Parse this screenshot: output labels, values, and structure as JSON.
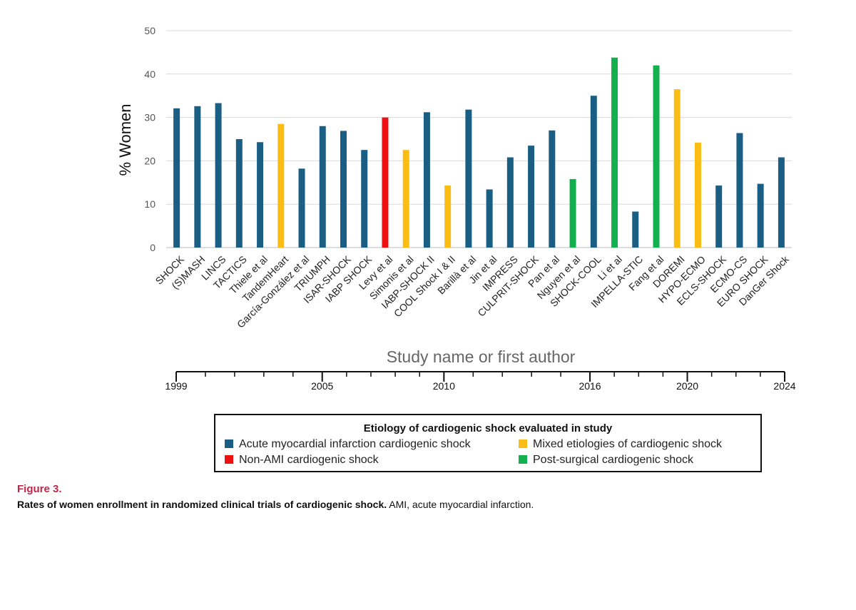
{
  "chart_data": {
    "type": "bar",
    "title": "",
    "ylabel": "% Women",
    "xlabel": "Study name or first author",
    "ylim": [
      0,
      50
    ],
    "yticks": [
      0,
      10,
      20,
      30,
      40,
      50
    ],
    "grid": true,
    "categories": [
      "SHOCK",
      "(S)MASH",
      "LINCS",
      "TACTICS",
      "Thiele et al",
      "TandemHeart",
      "García-González et al",
      "TRIUMPH",
      "ISAR-SHOCK",
      "IABP SHOCK",
      "Levy et al",
      "Simonis et al",
      "IABP-SHOCK II",
      "COOL Shock I & II",
      "Barillà et al",
      "Jin et al",
      "IMPRESS",
      "CULPRIT-SHOCK",
      "Pan et al",
      "Nguyen et al",
      "SHOCK-COOL",
      "Li et al",
      "IMPELLA-STIC",
      "Fang et al",
      "DOREMI",
      "HYPO-ECMO",
      "ECLS-SHOCK",
      "ECMO-CS",
      "EURO SHOCK",
      "DanGer Shock"
    ],
    "values": [
      32.1,
      32.6,
      33.3,
      25.0,
      24.3,
      28.5,
      18.2,
      28.0,
      26.9,
      22.5,
      30.0,
      22.5,
      31.2,
      14.3,
      31.8,
      13.4,
      20.8,
      23.5,
      27.0,
      15.8,
      35.0,
      43.8,
      8.3,
      42.0,
      36.5,
      24.2,
      14.3,
      26.4,
      14.7,
      20.8
    ],
    "group": [
      "AMI",
      "AMI",
      "AMI",
      "AMI",
      "AMI",
      "Mixed",
      "AMI",
      "AMI",
      "AMI",
      "AMI",
      "NonAMI",
      "Mixed",
      "AMI",
      "Mixed",
      "AMI",
      "AMI",
      "AMI",
      "AMI",
      "AMI",
      "Post",
      "AMI",
      "Post",
      "AMI",
      "Post",
      "Mixed",
      "Mixed",
      "AMI",
      "AMI",
      "AMI",
      "AMI"
    ],
    "colors": {
      "AMI": "#1a5e84",
      "Mixed": "#fbbd14",
      "NonAMI": "#ee1111",
      "Post": "#12b04e"
    },
    "timeline": {
      "labels": [
        "1999",
        "2005",
        "2010",
        "2016",
        "2020",
        "2024"
      ],
      "years": [
        1999,
        2005,
        2010,
        2016,
        2020,
        2024
      ],
      "minor_years": [
        1999,
        2000.2,
        2001.4,
        2002.6,
        2003.8,
        2005,
        2006,
        2007,
        2008,
        2009,
        2010,
        2011.2,
        2012.4,
        2013.6,
        2014.8,
        2016,
        2017,
        2018,
        2019,
        2020,
        2021,
        2022,
        2023,
        2024
      ]
    }
  },
  "legend": {
    "title": "Etiology of cardiogenic shock evaluated in study",
    "items": [
      {
        "key": "AMI",
        "label": "Acute myocardial infarction cardiogenic shock"
      },
      {
        "key": "Mixed",
        "label": "Mixed etiologies of cardiogenic shock"
      },
      {
        "key": "NonAMI",
        "label": "Non-AMI cardiogenic shock"
      },
      {
        "key": "Post",
        "label": "Post-surgical cardiogenic shock"
      }
    ]
  },
  "caption": {
    "figure_label": "Figure 3.",
    "title": "Rates of women enrollment in randomized clinical trials of cardiogenic shock.",
    "text": " AMI, acute myocardial infarction."
  }
}
